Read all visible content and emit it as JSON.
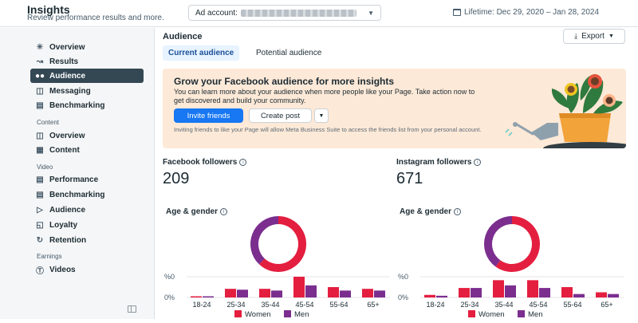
{
  "header": {
    "title": "Insights",
    "subtitle": "Review performance results and more.",
    "ad_account_label": "Ad account:",
    "date_label": "Lifetime: Dec 29, 2020 – Jan 28, 2024"
  },
  "sidebar": {
    "items": [
      {
        "label": "Overview",
        "icon": "sparkle-icon"
      },
      {
        "label": "Results",
        "icon": "chart-icon"
      },
      {
        "label": "Audience",
        "icon": "people-icon",
        "active": true
      },
      {
        "label": "Messaging",
        "icon": "chat-icon"
      },
      {
        "label": "Benchmarking",
        "icon": "bars-icon"
      }
    ],
    "sections": [
      {
        "title": "Content",
        "items": [
          {
            "label": "Overview",
            "icon": "grid-icon"
          },
          {
            "label": "Content",
            "icon": "table-icon"
          }
        ]
      },
      {
        "title": "Video",
        "items": [
          {
            "label": "Performance",
            "icon": "document-icon"
          },
          {
            "label": "Benchmarking",
            "icon": "bars-icon"
          },
          {
            "label": "Audience",
            "icon": "video-icon"
          },
          {
            "label": "Loyalty",
            "icon": "shield-icon"
          },
          {
            "label": "Retention",
            "icon": "refresh-icon"
          }
        ]
      },
      {
        "title": "Earnings",
        "items": [
          {
            "label": "Videos",
            "icon": "dollar-icon"
          }
        ]
      }
    ]
  },
  "main": {
    "title": "Audience",
    "export_label": "Export",
    "tabs": [
      {
        "label": "Current audience",
        "active": true
      },
      {
        "label": "Potential audience",
        "active": false
      }
    ],
    "promo": {
      "title": "Grow your Facebook audience for more insights",
      "body": "You can learn more about your audience when more people like your Page. Take action now to get discovered and build your community.",
      "primary_label": "Invite friends",
      "secondary_label": "Create post",
      "note": "Inviting friends to like your Page will allow Meta Business Suite to access the friends list from your personal account."
    },
    "metrics": [
      {
        "label": "Facebook followers",
        "value": "209"
      },
      {
        "label": "Instagram followers",
        "value": "671"
      }
    ],
    "card_label": "Age & gender"
  },
  "colors": {
    "women": "#e41e3f",
    "men": "#7b2e8e",
    "accent": "#1877f2"
  },
  "chart_data": [
    {
      "type": "bar",
      "title": "Age & gender",
      "categories": [
        "18-24",
        "25-34",
        "35-44",
        "45-54",
        "55-64",
        "65+"
      ],
      "y_tick_labels": [
        "%0",
        "0%"
      ],
      "series": [
        {
          "name": "Women",
          "values": [
            0.5,
            5,
            5,
            12,
            6,
            5
          ]
        },
        {
          "name": "Men",
          "values": [
            0.5,
            4.5,
            4,
            7,
            4,
            4
          ]
        }
      ],
      "ylim": [
        0,
        12
      ],
      "donut": {
        "women": 62,
        "men": 38
      }
    },
    {
      "type": "bar",
      "title": "Age & gender",
      "categories": [
        "18-24",
        "25-34",
        "35-44",
        "45-54",
        "55-64",
        "65+"
      ],
      "y_tick_labels": [
        "%0",
        "0%"
      ],
      "series": [
        {
          "name": "Women",
          "values": [
            1.5,
            5.5,
            10,
            10,
            6,
            3
          ]
        },
        {
          "name": "Men",
          "values": [
            1,
            5.5,
            7,
            5.5,
            2,
            2
          ]
        }
      ],
      "ylim": [
        0,
        12
      ],
      "donut": {
        "women": 60,
        "men": 40
      }
    }
  ]
}
